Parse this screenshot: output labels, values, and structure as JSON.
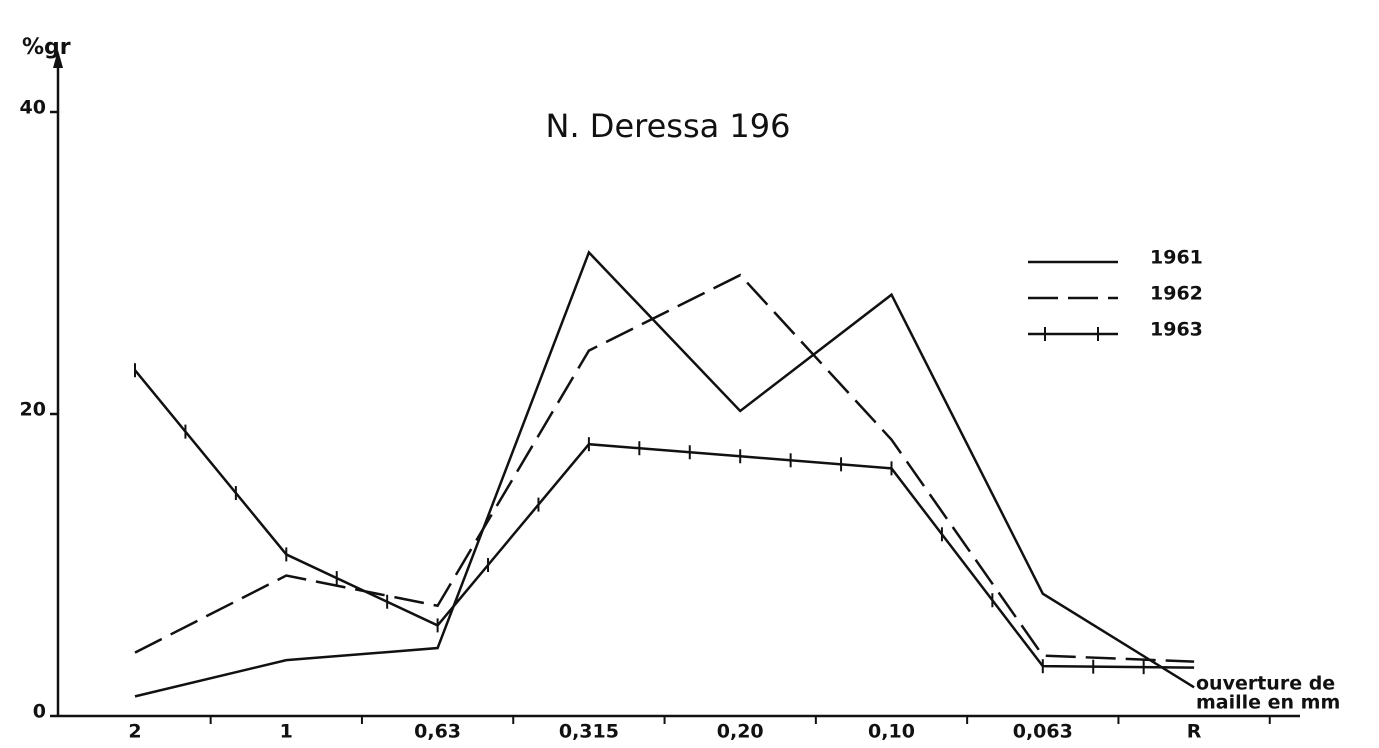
{
  "chart_data": {
    "type": "line",
    "title": "N. Deressa 196",
    "y_label": "%gr",
    "x_label": [
      "ouverture de",
      "maille en mm"
    ],
    "categories": [
      "2",
      "1",
      "0,63",
      "0,315",
      "0,20",
      "0,10",
      "0,063",
      "R"
    ],
    "series": [
      {
        "name": "1961",
        "color": "#111111",
        "style": "solid",
        "values": [
          1.3,
          3.7,
          4.5,
          30.7,
          20.2,
          27.9,
          8.1,
          1.9
        ]
      },
      {
        "name": "1962",
        "color": "#111111",
        "style": "dashed",
        "values": [
          4.2,
          9.3,
          7.3,
          24.2,
          29.2,
          18.3,
          4.0,
          3.6
        ]
      },
      {
        "name": "1963",
        "color": "#111111",
        "style": "crosses",
        "values": [
          22.9,
          10.7,
          6.0,
          18.0,
          17.2,
          16.4,
          3.3,
          3.2
        ]
      }
    ],
    "ylim": [
      0,
      40
    ],
    "yticks": [
      0,
      20,
      40
    ],
    "legend": "right"
  }
}
